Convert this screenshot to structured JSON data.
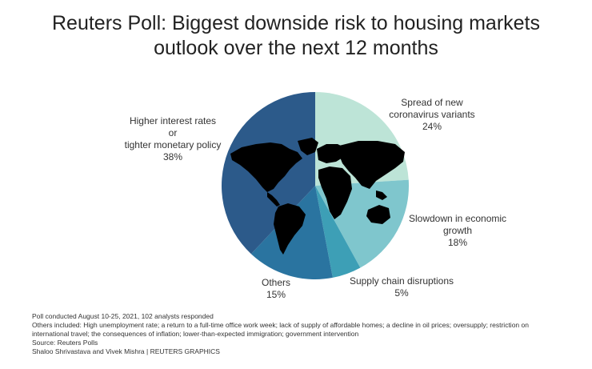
{
  "chart_data": {
    "type": "pie",
    "title_lines": [
      "Reuters Poll: Biggest downside risk to housing markets",
      "outlook over the next 12 months"
    ],
    "slices": [
      {
        "label_lines": [
          "Spread of new",
          "coronavirus variants"
        ],
        "value": 24,
        "value_text": "24%",
        "color": "#bde4d7"
      },
      {
        "label_lines": [
          "Slowdown in economic",
          "growth"
        ],
        "value": 18,
        "value_text": "18%",
        "color": "#7fc6cd"
      },
      {
        "label_lines": [
          "Supply chain disruptions"
        ],
        "value": 5,
        "value_text": "5%",
        "color": "#3d9fb6"
      },
      {
        "label_lines": [
          "Others"
        ],
        "value": 15,
        "value_text": "15%",
        "color": "#2a74a0"
      },
      {
        "label_lines": [
          "Higher interest rates",
          "or",
          "tighter monetary policy"
        ],
        "value": 38,
        "value_text": "38%",
        "color": "#2c5a8a"
      }
    ]
  },
  "footnotes": {
    "line1": "Poll conducted August 10-25, 2021, 102 analysts responded",
    "line2": "Others included: High unemployment rate; a return to a full-time office work week; lack of supply of affordable homes; a decline in oil prices; oversupply; restriction on",
    "line3": "international travel; the consequences of inflation; lower-than-expected immigration; government intervention",
    "line4": "Source: Reuters Polls",
    "line5": "Shaloo Shrivastava and Vivek Mishra | REUTERS GRAPHICS"
  }
}
